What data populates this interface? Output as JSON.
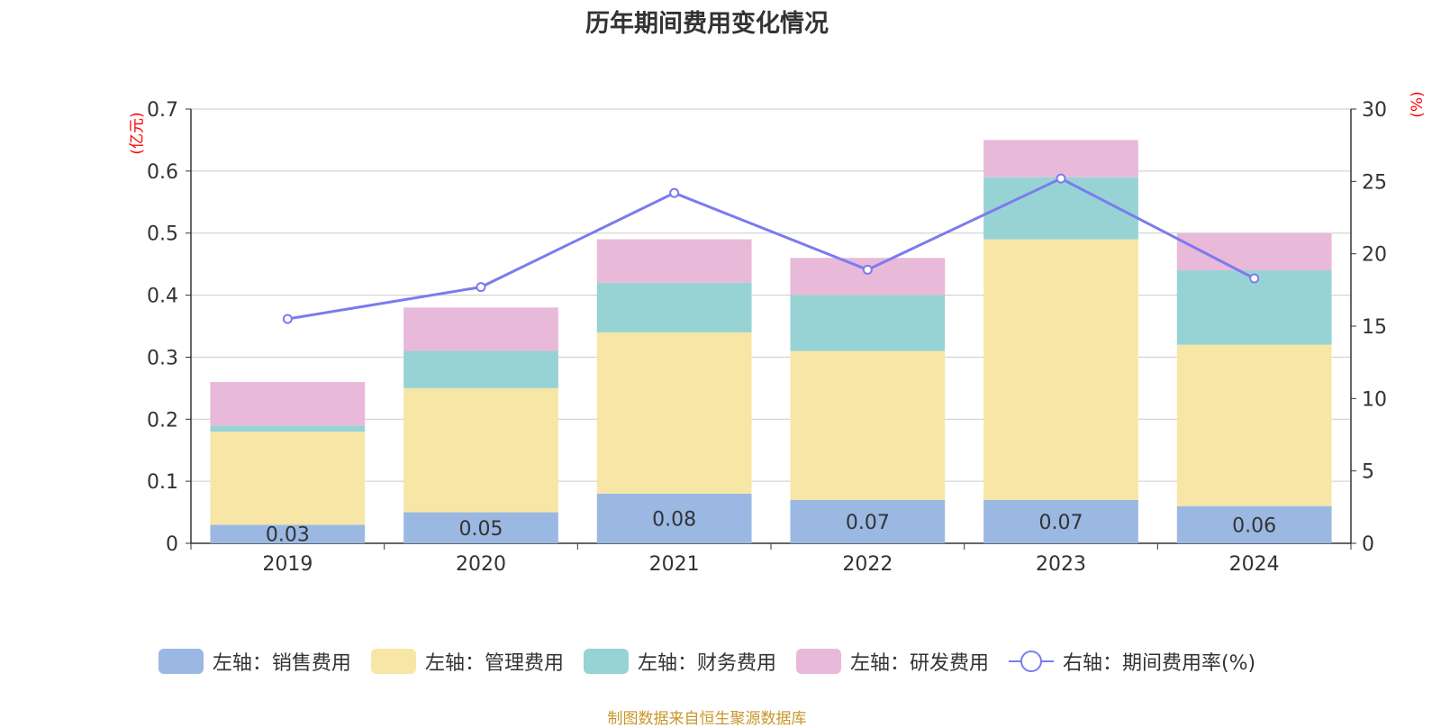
{
  "title": "历年期间费用变化情况",
  "left_unit": "(亿元)",
  "right_unit": "(%)",
  "source": "制图数据来自恒生聚源数据库",
  "chart_data": {
    "type": "bar",
    "stacked": true,
    "categories": [
      "2019",
      "2020",
      "2021",
      "2022",
      "2023",
      "2024"
    ],
    "series": [
      {
        "name": "左轴：销售费用",
        "axis": "left",
        "color": "#9bb8e3",
        "values": [
          0.03,
          0.05,
          0.08,
          0.07,
          0.07,
          0.06
        ]
      },
      {
        "name": "左轴：管理费用",
        "axis": "left",
        "color": "#f8e6a7",
        "values": [
          0.15,
          0.2,
          0.26,
          0.24,
          0.42,
          0.26
        ]
      },
      {
        "name": "左轴：财务费用",
        "axis": "left",
        "color": "#97d3d4",
        "values": [
          0.01,
          0.06,
          0.08,
          0.09,
          0.1,
          0.12
        ]
      },
      {
        "name": "左轴：研发费用",
        "axis": "left",
        "color": "#e8b9d9",
        "values": [
          0.07,
          0.07,
          0.07,
          0.06,
          0.06,
          0.06
        ]
      },
      {
        "name": "右轴：期间费用率(%)",
        "axis": "right",
        "type": "line",
        "color": "#7b7bef",
        "values": [
          15.5,
          17.7,
          24.2,
          18.9,
          25.2,
          18.3
        ]
      }
    ],
    "data_labels_series": 0,
    "left_axis": {
      "min": 0,
      "max": 0.7,
      "ticks": [
        "0",
        "0.1",
        "0.2",
        "0.3",
        "0.4",
        "0.5",
        "0.6",
        "0.7"
      ]
    },
    "right_axis": {
      "min": 0,
      "max": 30,
      "ticks": [
        "0",
        "5",
        "10",
        "15",
        "20",
        "25",
        "30"
      ]
    },
    "grid": true,
    "legend_position": "bottom"
  }
}
